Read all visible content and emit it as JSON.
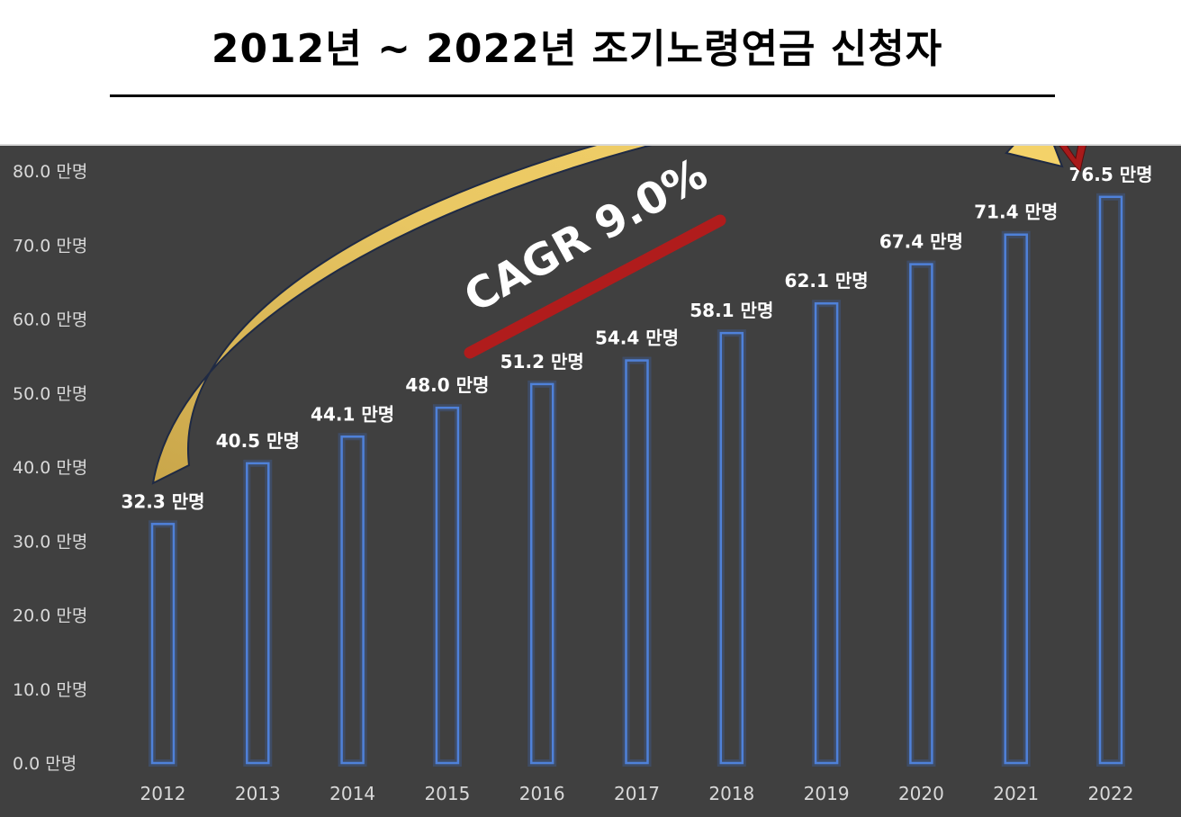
{
  "title": "2012년 ~ 2022년 조기노령연금 신청자",
  "annotation": {
    "cagr_label": "CAGR 9.0%"
  },
  "colors": {
    "panel_bg": "#404040",
    "bar_stroke": "#4f81d9",
    "arrow_fill": "#e8c25a",
    "accent_red": "#b01c1c"
  },
  "chart_data": {
    "type": "bar",
    "title": "2012년 ~ 2022년 조기노령연금 신청자",
    "xlabel": "",
    "ylabel": "",
    "categories": [
      "2012",
      "2013",
      "2014",
      "2015",
      "2016",
      "2017",
      "2018",
      "2019",
      "2020",
      "2021",
      "2022"
    ],
    "values": [
      32.3,
      40.5,
      44.1,
      48.0,
      51.2,
      54.4,
      58.1,
      62.1,
      67.4,
      71.4,
      76.5
    ],
    "data_labels": [
      "32.3 만명",
      "40.5 만명",
      "44.1 만명",
      "48.0 만명",
      "51.2 만명",
      "54.4 만명",
      "58.1 만명",
      "62.1 만명",
      "67.4 만명",
      "71.4 만명",
      "76.5 만명"
    ],
    "ylim": [
      0,
      80
    ],
    "y_ticks": [
      "0.0 만명",
      "10.0 만명",
      "20.0 만명",
      "30.0 만명",
      "40.0 만명",
      "50.0 만명",
      "60.0 만명",
      "70.0 만명",
      "80.0 만명"
    ],
    "grid": false,
    "legend": "none"
  }
}
